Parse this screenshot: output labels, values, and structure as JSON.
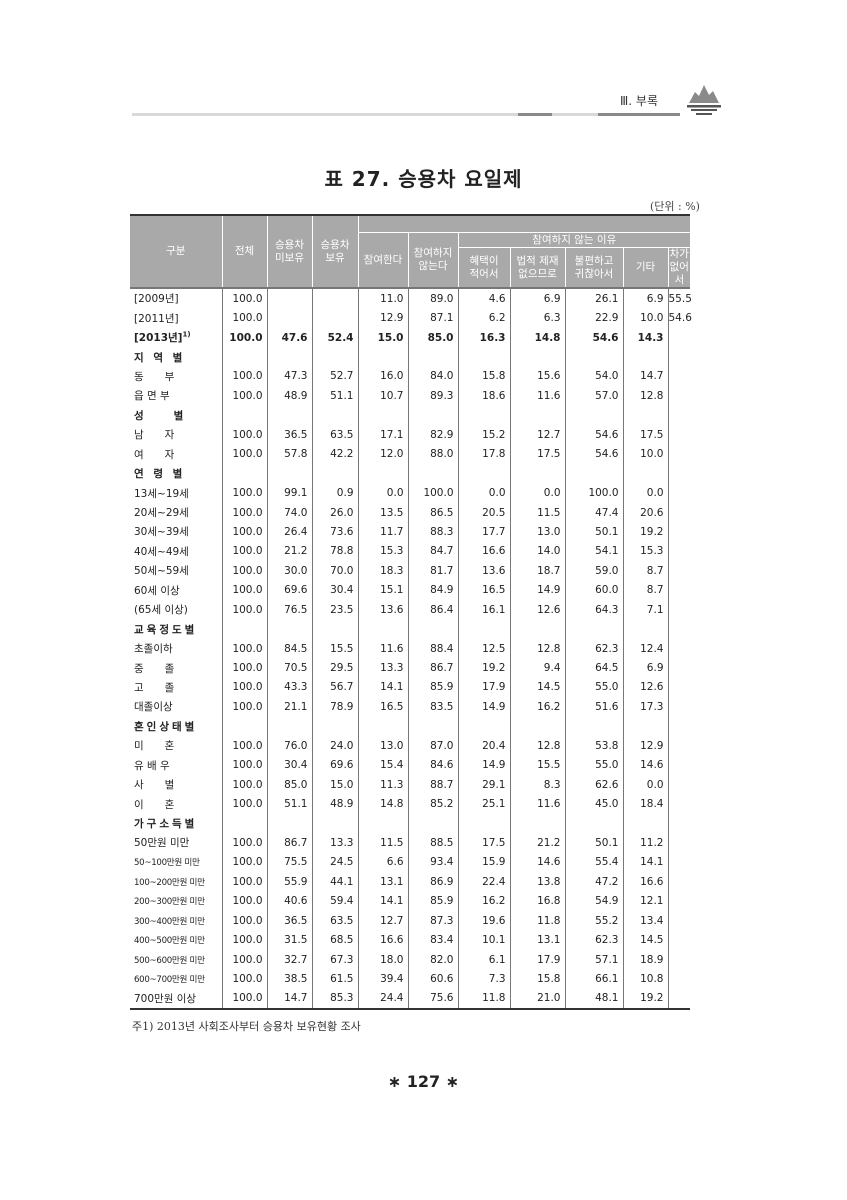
{
  "running_header": "Ⅲ. 부록",
  "title": "표 27. 승용차 요일제",
  "unit": "(단위 : %)",
  "columns": {
    "category": "구분",
    "total": "전체",
    "no_car": "승용차\n미보유",
    "has_car": "승용차\n보유",
    "participate": "참여한다",
    "not_participate": "참여하지\n않는다",
    "reasons_group": "참여하지 않는 이유",
    "reasons": [
      "혜택이\n적어서",
      "법적 제재\n없으므로",
      "불편하고\n귀찮아서",
      "기타",
      "차가\n없어서"
    ]
  },
  "rows": [
    {
      "label": "[2009년]",
      "values": [
        "100.0",
        "",
        "",
        "11.0",
        "89.0",
        "4.6",
        "6.9",
        "26.1",
        "6.9",
        "55.5"
      ]
    },
    {
      "label": "[2011년]",
      "values": [
        "100.0",
        "",
        "",
        "12.9",
        "87.1",
        "6.2",
        "6.3",
        "22.9",
        "10.0",
        "54.6"
      ]
    },
    {
      "label": "[2013년]",
      "sup": "1)",
      "bold": true,
      "values": [
        "100.0",
        "47.6",
        "52.4",
        "15.0",
        "85.0",
        "16.3",
        "14.8",
        "54.6",
        "14.3",
        ""
      ]
    },
    {
      "label": "지 역 별",
      "section": true
    },
    {
      "label": "동　　부",
      "values": [
        "100.0",
        "47.3",
        "52.7",
        "16.0",
        "84.0",
        "15.8",
        "15.6",
        "54.0",
        "14.7",
        ""
      ]
    },
    {
      "label": "읍 면 부",
      "values": [
        "100.0",
        "48.9",
        "51.1",
        "10.7",
        "89.3",
        "18.6",
        "11.6",
        "57.0",
        "12.8",
        ""
      ]
    },
    {
      "label": "성　　별",
      "section": true
    },
    {
      "label": "남　　자",
      "values": [
        "100.0",
        "36.5",
        "63.5",
        "17.1",
        "82.9",
        "15.2",
        "12.7",
        "54.6",
        "17.5",
        ""
      ]
    },
    {
      "label": "여　　자",
      "values": [
        "100.0",
        "57.8",
        "42.2",
        "12.0",
        "88.0",
        "17.8",
        "17.5",
        "54.6",
        "10.0",
        ""
      ]
    },
    {
      "label": "연 령 별",
      "section": true
    },
    {
      "label": "13세~19세",
      "values": [
        "100.0",
        "99.1",
        "0.9",
        "0.0",
        "100.0",
        "0.0",
        "0.0",
        "100.0",
        "0.0",
        ""
      ]
    },
    {
      "label": "20세~29세",
      "values": [
        "100.0",
        "74.0",
        "26.0",
        "13.5",
        "86.5",
        "20.5",
        "11.5",
        "47.4",
        "20.6",
        ""
      ]
    },
    {
      "label": "30세~39세",
      "values": [
        "100.0",
        "26.4",
        "73.6",
        "11.7",
        "88.3",
        "17.7",
        "13.0",
        "50.1",
        "19.2",
        ""
      ]
    },
    {
      "label": "40세~49세",
      "values": [
        "100.0",
        "21.2",
        "78.8",
        "15.3",
        "84.7",
        "16.6",
        "14.0",
        "54.1",
        "15.3",
        ""
      ]
    },
    {
      "label": "50세~59세",
      "values": [
        "100.0",
        "30.0",
        "70.0",
        "18.3",
        "81.7",
        "13.6",
        "18.7",
        "59.0",
        "8.7",
        ""
      ]
    },
    {
      "label": "60세 이상",
      "values": [
        "100.0",
        "69.6",
        "30.4",
        "15.1",
        "84.9",
        "16.5",
        "14.9",
        "60.0",
        "8.7",
        ""
      ]
    },
    {
      "label": "(65세 이상)",
      "values": [
        "100.0",
        "76.5",
        "23.5",
        "13.6",
        "86.4",
        "16.1",
        "12.6",
        "64.3",
        "7.1",
        ""
      ]
    },
    {
      "label": "교육정도별",
      "section": true
    },
    {
      "label": "초졸이하",
      "values": [
        "100.0",
        "84.5",
        "15.5",
        "11.6",
        "88.4",
        "12.5",
        "12.8",
        "62.3",
        "12.4",
        ""
      ]
    },
    {
      "label": "중　　졸",
      "values": [
        "100.0",
        "70.5",
        "29.5",
        "13.3",
        "86.7",
        "19.2",
        "9.4",
        "64.5",
        "6.9",
        ""
      ]
    },
    {
      "label": "고　　졸",
      "values": [
        "100.0",
        "43.3",
        "56.7",
        "14.1",
        "85.9",
        "17.9",
        "14.5",
        "55.0",
        "12.6",
        ""
      ]
    },
    {
      "label": "대졸이상",
      "values": [
        "100.0",
        "21.1",
        "78.9",
        "16.5",
        "83.5",
        "14.9",
        "16.2",
        "51.6",
        "17.3",
        ""
      ]
    },
    {
      "label": "혼인상태별",
      "section": true
    },
    {
      "label": "미　　혼",
      "values": [
        "100.0",
        "76.0",
        "24.0",
        "13.0",
        "87.0",
        "20.4",
        "12.8",
        "53.8",
        "12.9",
        ""
      ]
    },
    {
      "label": "유 배 우",
      "values": [
        "100.0",
        "30.4",
        "69.6",
        "15.4",
        "84.6",
        "14.9",
        "15.5",
        "55.0",
        "14.6",
        ""
      ]
    },
    {
      "label": "사　　별",
      "values": [
        "100.0",
        "85.0",
        "15.0",
        "11.3",
        "88.7",
        "29.1",
        "8.3",
        "62.6",
        "0.0",
        ""
      ]
    },
    {
      "label": "이　　혼",
      "values": [
        "100.0",
        "51.1",
        "48.9",
        "14.8",
        "85.2",
        "25.1",
        "11.6",
        "45.0",
        "18.4",
        ""
      ]
    },
    {
      "label": "가구소득별",
      "section": true
    },
    {
      "label": "50만원 미만",
      "values": [
        "100.0",
        "86.7",
        "13.3",
        "11.5",
        "88.5",
        "17.5",
        "21.2",
        "50.1",
        "11.2",
        ""
      ]
    },
    {
      "label": "50~100만원 미만",
      "small": true,
      "values": [
        "100.0",
        "75.5",
        "24.5",
        "6.6",
        "93.4",
        "15.9",
        "14.6",
        "55.4",
        "14.1",
        ""
      ]
    },
    {
      "label": "100~200만원 미만",
      "small": true,
      "values": [
        "100.0",
        "55.9",
        "44.1",
        "13.1",
        "86.9",
        "22.4",
        "13.8",
        "47.2",
        "16.6",
        ""
      ]
    },
    {
      "label": "200~300만원 미만",
      "small": true,
      "values": [
        "100.0",
        "40.6",
        "59.4",
        "14.1",
        "85.9",
        "16.2",
        "16.8",
        "54.9",
        "12.1",
        ""
      ]
    },
    {
      "label": "300~400만원 미만",
      "small": true,
      "values": [
        "100.0",
        "36.5",
        "63.5",
        "12.7",
        "87.3",
        "19.6",
        "11.8",
        "55.2",
        "13.4",
        ""
      ]
    },
    {
      "label": "400~500만원 미만",
      "small": true,
      "values": [
        "100.0",
        "31.5",
        "68.5",
        "16.6",
        "83.4",
        "10.1",
        "13.1",
        "62.3",
        "14.5",
        ""
      ]
    },
    {
      "label": "500~600만원 미만",
      "small": true,
      "values": [
        "100.0",
        "32.7",
        "67.3",
        "18.0",
        "82.0",
        "6.1",
        "17.9",
        "57.1",
        "18.9",
        ""
      ]
    },
    {
      "label": "600~700만원 미만",
      "small": true,
      "values": [
        "100.0",
        "38.5",
        "61.5",
        "39.4",
        "60.6",
        "7.3",
        "15.8",
        "66.1",
        "10.8",
        ""
      ]
    },
    {
      "label": "700만원 이상",
      "values": [
        "100.0",
        "14.7",
        "85.3",
        "24.4",
        "75.6",
        "11.8",
        "21.0",
        "48.1",
        "19.2",
        ""
      ]
    }
  ],
  "footnote": "주1) 2013년 사회조사부터 승용차 보유현황 조사",
  "page_number": "∗ 127 ∗",
  "colors": {
    "header_bg": "#a9a9a9",
    "rule_light": "#d9d9d9",
    "rule_dark": "#8a8a8a"
  }
}
